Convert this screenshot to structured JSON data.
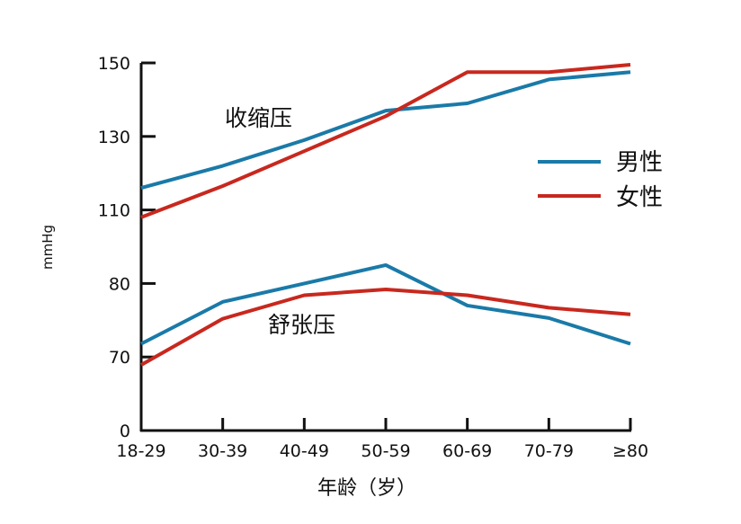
{
  "chart_data": {
    "type": "line",
    "title": "",
    "xlabel": "年龄（岁）",
    "ylabel": "mmHg",
    "categories": [
      "18-29",
      "30-39",
      "40-49",
      "50-59",
      "60-69",
      "70-79",
      "≥80"
    ],
    "y_ticks": [
      0,
      70,
      80,
      110,
      130,
      150
    ],
    "y_tick_labels": [
      "0",
      "70",
      "80",
      "110",
      "130",
      "150"
    ],
    "ylim": [
      0,
      150
    ],
    "y_axis_note": "broken/non-linear scale: tick labels equally spaced",
    "grid": false,
    "legend_position": "right",
    "annotations": {
      "systolic": "收缩压",
      "diastolic": "舒张压"
    },
    "series": [
      {
        "name": "男性",
        "group": "systolic",
        "color": "#1a7aa8",
        "values": [
          116,
          122,
          129,
          137,
          139,
          145.5,
          147.5
        ]
      },
      {
        "name": "女性",
        "group": "systolic",
        "color": "#c8281e",
        "values": [
          107,
          116.5,
          126,
          135.5,
          147.5,
          147.5,
          149.5
        ]
      },
      {
        "name": "男性",
        "group": "diastolic",
        "color": "#1a7aa8",
        "values": [
          71.8,
          77.5,
          80,
          87.5,
          77,
          75.3,
          71.8
        ]
      },
      {
        "name": "女性",
        "group": "diastolic",
        "color": "#c8281e",
        "values": [
          62.5,
          75.2,
          78.4,
          79.2,
          78.4,
          76.7,
          75.8
        ]
      }
    ],
    "legend": [
      {
        "label": "男性",
        "color": "#1a7aa8"
      },
      {
        "label": "女性",
        "color": "#c8281e"
      }
    ]
  }
}
